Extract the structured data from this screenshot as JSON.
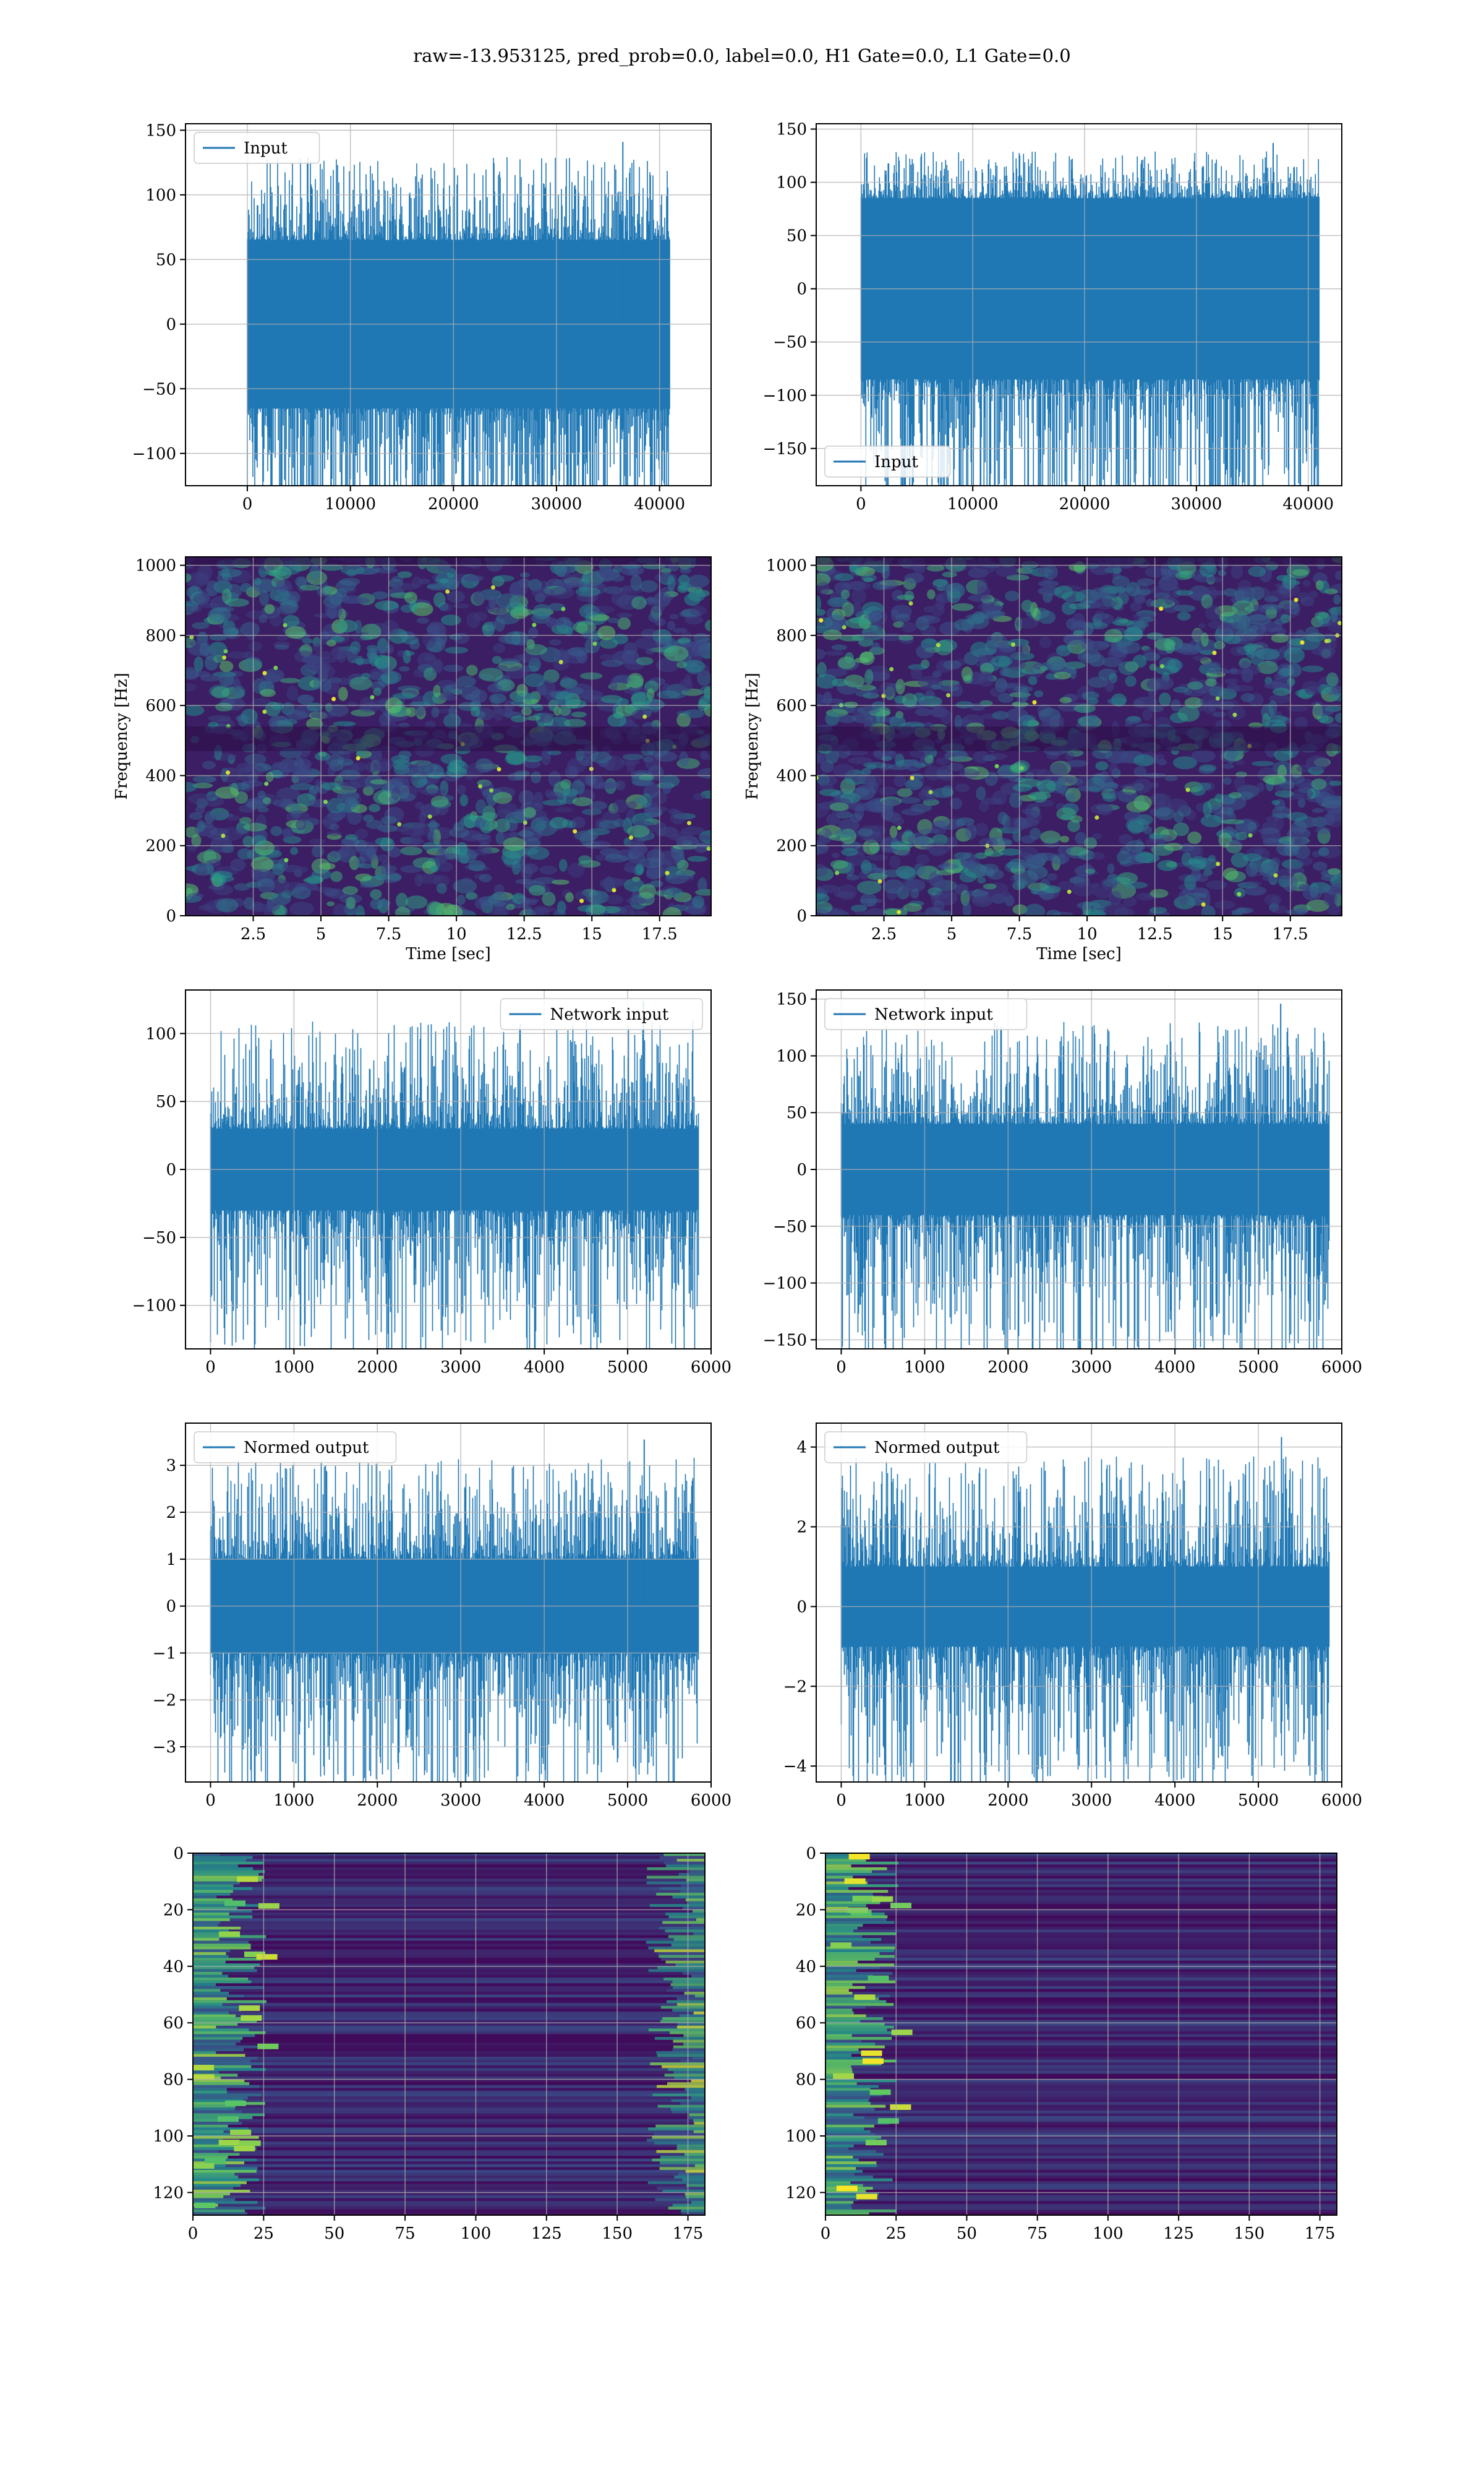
{
  "figure": {
    "suptitle": "raw=-13.953125, pred_prob=0.0, label=0.0, H1 Gate=0.0, L1 Gate=0.0"
  },
  "colors": {
    "line": "#1f77b4",
    "grid": "#b0b0b0",
    "spec_bg": "#3b1e63",
    "heat_bg": "#3a0f5e"
  },
  "chart_data": [
    {
      "id": "ts1-left",
      "type": "line",
      "legend": "Input",
      "legend_loc": "upper-left",
      "xlim": [
        -6000,
        45000
      ],
      "ylim": [
        -125,
        155
      ],
      "xticks": [
        0,
        10000,
        20000,
        30000,
        40000
      ],
      "yticks": [
        -100,
        -50,
        0,
        50,
        100,
        150
      ],
      "x_range": [
        0,
        40960
      ],
      "core_amp": 65,
      "peak_max": 141,
      "peak_min": -125,
      "grid": true
    },
    {
      "id": "ts1-right",
      "type": "line",
      "legend": "Input",
      "legend_loc": "lower-left",
      "xlim": [
        -4000,
        43000
      ],
      "ylim": [
        -185,
        155
      ],
      "xticks": [
        0,
        10000,
        20000,
        30000,
        40000
      ],
      "yticks": [
        -150,
        -100,
        -50,
        0,
        50,
        100,
        150
      ],
      "x_range": [
        0,
        40960
      ],
      "core_amp": 85,
      "peak_max": 137,
      "peak_min": -170,
      "grid": true
    },
    {
      "id": "spec-left",
      "type": "heatmap",
      "kind": "spectrogram",
      "xlabel": "Time [sec]",
      "ylabel": "Frequency [Hz]",
      "xlim": [
        0.0,
        19.4
      ],
      "ylim": [
        0,
        1024
      ],
      "xticks": [
        2.5,
        5.0,
        7.5,
        10.0,
        12.5,
        15.0,
        17.5
      ],
      "yticks": [
        0,
        200,
        400,
        600,
        800,
        1000
      ],
      "grid": true
    },
    {
      "id": "spec-right",
      "type": "heatmap",
      "kind": "spectrogram",
      "xlabel": "Time [sec]",
      "ylabel": "Frequency [Hz]",
      "xlim": [
        0.0,
        19.4
      ],
      "ylim": [
        0,
        1024
      ],
      "xticks": [
        2.5,
        5.0,
        7.5,
        10.0,
        12.5,
        15.0,
        17.5
      ],
      "yticks": [
        0,
        200,
        400,
        600,
        800,
        1000
      ],
      "grid": true
    },
    {
      "id": "ts2-left",
      "type": "line",
      "legend": "Network input",
      "legend_loc": "upper-right",
      "xlim": [
        -300,
        6000
      ],
      "ylim": [
        -132,
        132
      ],
      "xticks": [
        0,
        1000,
        2000,
        3000,
        4000,
        5000,
        6000
      ],
      "yticks": [
        -100,
        -50,
        0,
        50,
        100
      ],
      "x_range": [
        0,
        5850
      ],
      "core_amp": 30,
      "peak_max": 124,
      "peak_min": -120,
      "grid": true
    },
    {
      "id": "ts2-right",
      "type": "line",
      "legend": "Network input",
      "legend_loc": "upper-left",
      "xlim": [
        -300,
        6000
      ],
      "ylim": [
        -158,
        158
      ],
      "xticks": [
        0,
        1000,
        2000,
        3000,
        4000,
        5000,
        6000
      ],
      "yticks": [
        -150,
        -100,
        -50,
        0,
        50,
        100,
        150
      ],
      "x_range": [
        0,
        5850
      ],
      "core_amp": 40,
      "peak_max": 146,
      "peak_min": -143,
      "grid": true
    },
    {
      "id": "ts3-left",
      "type": "line",
      "legend": "Normed output",
      "legend_loc": "upper-left",
      "xlim": [
        -300,
        6000
      ],
      "ylim": [
        -3.75,
        3.9
      ],
      "xticks": [
        0,
        1000,
        2000,
        3000,
        4000,
        5000,
        6000
      ],
      "yticks": [
        -3,
        -2,
        -1,
        0,
        1,
        2,
        3
      ],
      "x_range": [
        0,
        5850
      ],
      "core_amp": 1.0,
      "peak_max": 3.55,
      "peak_min": -3.45,
      "grid": true
    },
    {
      "id": "ts3-right",
      "type": "line",
      "legend": "Normed output",
      "legend_loc": "upper-left",
      "xlim": [
        -300,
        6000
      ],
      "ylim": [
        -4.4,
        4.6
      ],
      "xticks": [
        0,
        1000,
        2000,
        3000,
        4000,
        5000,
        6000
      ],
      "yticks": [
        -4,
        -2,
        0,
        2,
        4
      ],
      "x_range": [
        0,
        5850
      ],
      "core_amp": 1.0,
      "peak_max": 4.25,
      "peak_min": -4.05,
      "grid": true
    },
    {
      "id": "feat-left",
      "type": "heatmap",
      "kind": "feature-map",
      "xlim": [
        0,
        181
      ],
      "ylim": [
        128,
        0
      ],
      "xticks": [
        0,
        25,
        50,
        75,
        100,
        125,
        150,
        175
      ],
      "yticks": [
        0,
        20,
        40,
        60,
        80,
        100,
        120
      ],
      "grid": true
    },
    {
      "id": "feat-right",
      "type": "heatmap",
      "kind": "feature-map",
      "xlim": [
        0,
        181
      ],
      "ylim": [
        128,
        0
      ],
      "xticks": [
        0,
        25,
        50,
        75,
        100,
        125,
        150,
        175
      ],
      "yticks": [
        0,
        20,
        40,
        60,
        80,
        100,
        120
      ],
      "grid": true
    }
  ]
}
